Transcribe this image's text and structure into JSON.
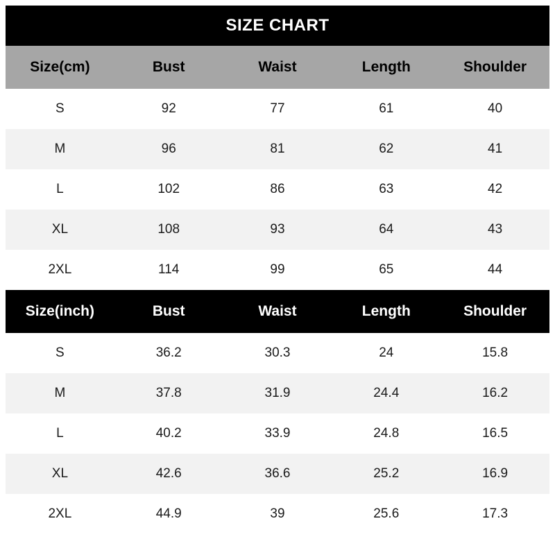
{
  "title": "SIZE CHART",
  "colors": {
    "title_bar_bg": "#000000",
    "title_bar_text": "#ffffff",
    "cm_header_bg": "#a6a6a6",
    "inch_header_bg": "#000000",
    "inch_header_text": "#ffffff",
    "alt_row_bg": "#f2f2f2",
    "row_bg": "#ffffff",
    "text": "#000000"
  },
  "chart_data": [
    {
      "type": "table",
      "title": "SIZE CHART",
      "unit": "cm",
      "columns": [
        "Size(cm)",
        "Bust",
        "Waist",
        "Length",
        "Shoulder"
      ],
      "rows": [
        [
          "S",
          "92",
          "77",
          "61",
          "40"
        ],
        [
          "M",
          "96",
          "81",
          "62",
          "41"
        ],
        [
          "L",
          "102",
          "86",
          "63",
          "42"
        ],
        [
          "XL",
          "108",
          "93",
          "64",
          "43"
        ],
        [
          "2XL",
          "114",
          "99",
          "65",
          "44"
        ]
      ]
    },
    {
      "type": "table",
      "title": "SIZE CHART",
      "unit": "inch",
      "columns": [
        "Size(inch)",
        "Bust",
        "Waist",
        "Length",
        "Shoulder"
      ],
      "rows": [
        [
          "S",
          "36.2",
          "30.3",
          "24",
          "15.8"
        ],
        [
          "M",
          "37.8",
          "31.9",
          "24.4",
          "16.2"
        ],
        [
          "L",
          "40.2",
          "33.9",
          "24.8",
          "16.5"
        ],
        [
          "XL",
          "42.6",
          "36.6",
          "25.2",
          "16.9"
        ],
        [
          "2XL",
          "44.9",
          "39",
          "25.6",
          "17.3"
        ]
      ]
    }
  ]
}
